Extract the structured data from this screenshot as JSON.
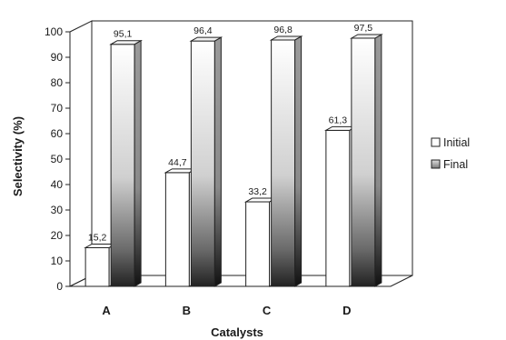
{
  "chart_data": {
    "type": "bar",
    "title": "",
    "xlabel": "Catalysts",
    "ylabel": "Selectivity (%)",
    "categories": [
      "A",
      "B",
      "C",
      "D"
    ],
    "series": [
      {
        "name": "Initial",
        "values": [
          15.2,
          44.7,
          33.2,
          61.3
        ],
        "labels": [
          "15,2",
          "44,7",
          "33,2",
          "61,3"
        ]
      },
      {
        "name": "Final",
        "values": [
          95.1,
          96.4,
          96.8,
          97.5
        ],
        "labels": [
          "95,1",
          "96,4",
          "96,8",
          "97,5"
        ]
      }
    ],
    "ylim": [
      0,
      100
    ],
    "yticks": [
      "0",
      "10",
      "20",
      "30",
      "40",
      "50",
      "60",
      "70",
      "80",
      "90",
      "100"
    ],
    "grid": false,
    "three_d": true,
    "legend_position": "right"
  },
  "colors": {
    "initial_fill": "#ffffff",
    "final_gradient_top": "#ffffff",
    "final_gradient_mid": "#bdbdbd",
    "final_gradient_bottom": "#1a1a1a",
    "outline": "#222222"
  }
}
